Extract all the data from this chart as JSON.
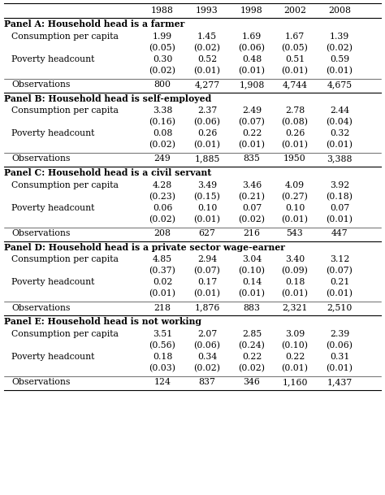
{
  "years": [
    "1988",
    "1993",
    "1998",
    "2002",
    "2008"
  ],
  "panels": [
    {
      "title": "Panel A: Household head is a farmer",
      "consumption": [
        "1.99",
        "1.45",
        "1.69",
        "1.67",
        "1.39"
      ],
      "consumption_se": [
        "(0.05)",
        "(0.02)",
        "(0.06)",
        "(0.05)",
        "(0.02)"
      ],
      "poverty": [
        "0.30",
        "0.52",
        "0.48",
        "0.51",
        "0.59"
      ],
      "poverty_se": [
        "(0.02)",
        "(0.01)",
        "(0.01)",
        "(0.01)",
        "(0.01)"
      ],
      "observations": [
        "800",
        "4,277",
        "1,908",
        "4,744",
        "4,675"
      ]
    },
    {
      "title": "Panel B: Household head is self-employed",
      "consumption": [
        "3.38",
        "2.37",
        "2.49",
        "2.78",
        "2.44"
      ],
      "consumption_se": [
        "(0.16)",
        "(0.06)",
        "(0.07)",
        "(0.08)",
        "(0.04)"
      ],
      "poverty": [
        "0.08",
        "0.26",
        "0.22",
        "0.26",
        "0.32"
      ],
      "poverty_se": [
        "(0.02)",
        "(0.01)",
        "(0.01)",
        "(0.01)",
        "(0.01)"
      ],
      "observations": [
        "249",
        "1,885",
        "835",
        "1950",
        "3,388"
      ]
    },
    {
      "title": "Panel C: Household head is a civil servant",
      "consumption": [
        "4.28",
        "3.49",
        "3.46",
        "4.09",
        "3.92"
      ],
      "consumption_se": [
        "(0.23)",
        "(0.15)",
        "(0.21)",
        "(0.27)",
        "(0.18)"
      ],
      "poverty": [
        "0.06",
        "0.10",
        "0.07",
        "0.10",
        "0.07"
      ],
      "poverty_se": [
        "(0.02)",
        "(0.01)",
        "(0.02)",
        "(0.01)",
        "(0.01)"
      ],
      "observations": [
        "208",
        "627",
        "216",
        "543",
        "447"
      ]
    },
    {
      "title": "Panel D: Household head is a private sector wage-earner",
      "consumption": [
        "4.85",
        "2.94",
        "3.04",
        "3.40",
        "3.12"
      ],
      "consumption_se": [
        "(0.37)",
        "(0.07)",
        "(0.10)",
        "(0.09)",
        "(0.07)"
      ],
      "poverty": [
        "0.02",
        "0.17",
        "0.14",
        "0.18",
        "0.21"
      ],
      "poverty_se": [
        "(0.01)",
        "(0.01)",
        "(0.01)",
        "(0.01)",
        "(0.01)"
      ],
      "observations": [
        "218",
        "1,876",
        "883",
        "2,321",
        "2,510"
      ]
    },
    {
      "title": "Panel E: Household head is not working",
      "consumption": [
        "3.51",
        "2.07",
        "2.85",
        "3.09",
        "2.39"
      ],
      "consumption_se": [
        "(0.56)",
        "(0.06)",
        "(0.24)",
        "(0.10)",
        "(0.06)"
      ],
      "poverty": [
        "0.18",
        "0.34",
        "0.22",
        "0.22",
        "0.31"
      ],
      "poverty_se": [
        "(0.03)",
        "(0.02)",
        "(0.02)",
        "(0.01)",
        "(0.01)"
      ],
      "observations": [
        "124",
        "837",
        "346",
        "1,160",
        "1,437"
      ]
    }
  ],
  "row_label_consumption": "Consumption per capita",
  "row_label_poverty": "Poverty headcount",
  "row_label_obs": "Observations",
  "figsize": [
    4.74,
    6.09
  ],
  "dpi": 100
}
